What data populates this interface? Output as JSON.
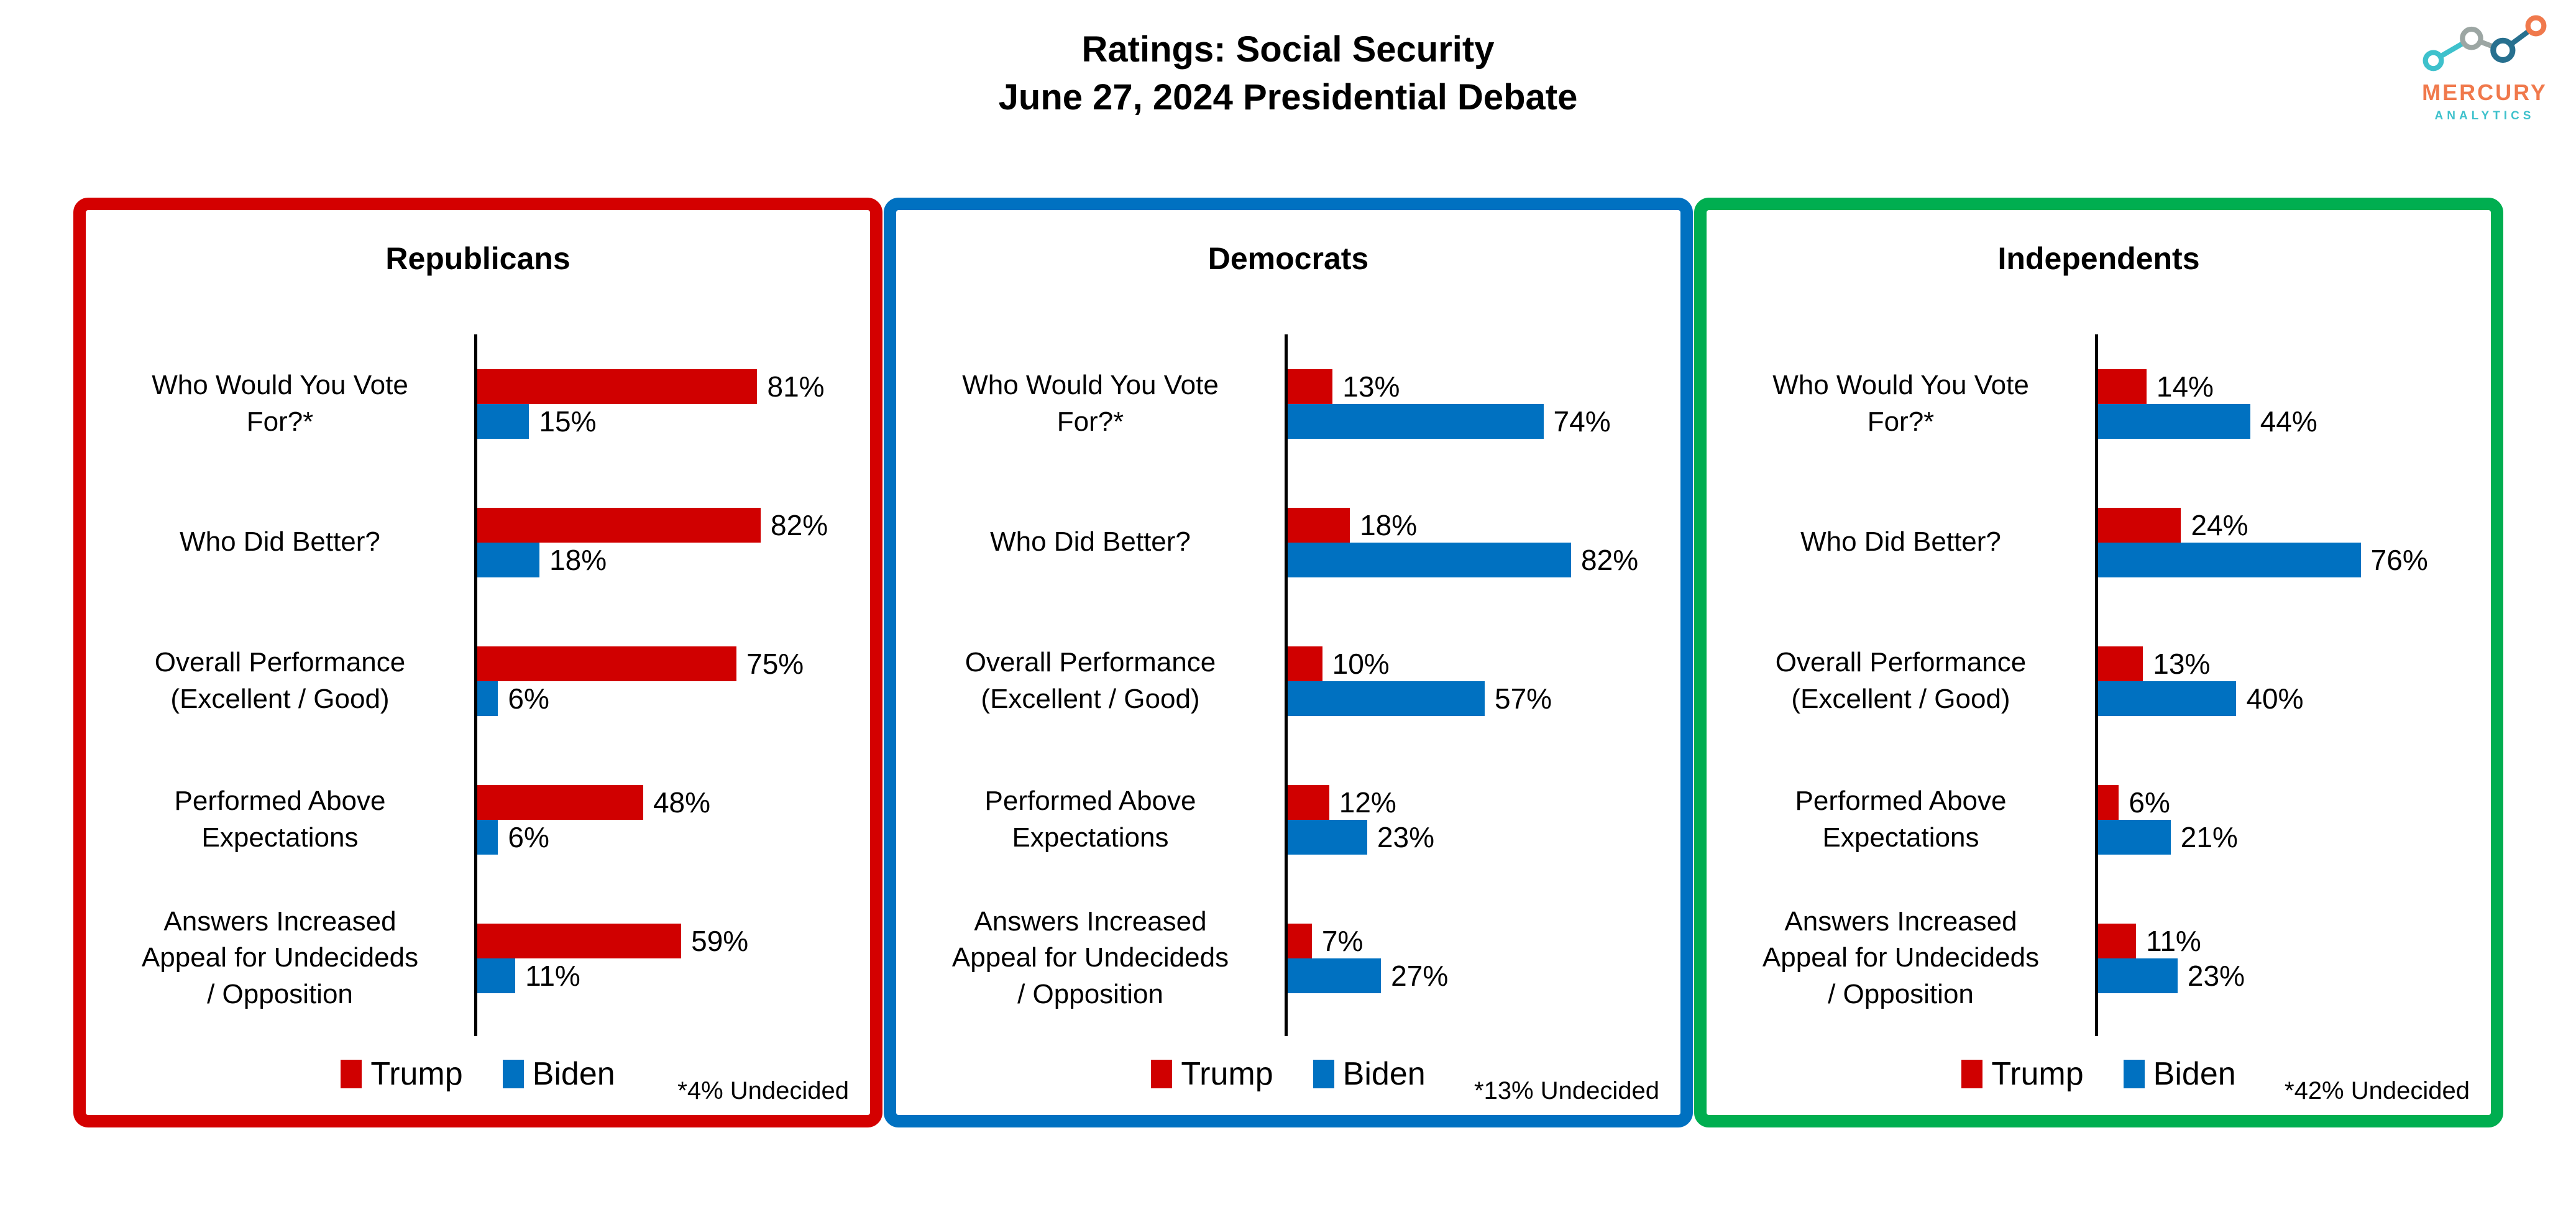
{
  "title": {
    "line1": "Ratings: Social Security",
    "line2": "June 27, 2024 Presidential Debate"
  },
  "logo": {
    "brand": "MERCURY",
    "sub": "ANALYTICS",
    "colors": {
      "teal": "#3EC1CC",
      "gray": "#9CA6A3",
      "steel": "#27708F",
      "orange": "#F0794C"
    }
  },
  "colors": {
    "trump": "#D00000",
    "biden": "#0071C1",
    "republicans_border": "#D40000",
    "democrats_border": "#0071C1",
    "independents_border": "#00AE50",
    "axis": "#000000",
    "text": "#000000"
  },
  "legend": {
    "trump_label": "Trump",
    "biden_label": "Biden"
  },
  "chart_data": {
    "type": "bar",
    "orientation": "horizontal",
    "unit": "percent",
    "value_suffix": "%",
    "xlim": [
      0,
      100
    ],
    "grid": false,
    "legend_position": "bottom",
    "title": "Ratings: Social Security",
    "subtitle": "June 27, 2024 Presidential Debate",
    "series_names": [
      "Trump",
      "Biden"
    ],
    "categories": [
      "Who Would You Vote For?*",
      "Who Did Better?",
      "Overall Performance (Excellent / Good)",
      "Performed Above Expectations",
      "Answers Increased Appeal for Undecideds / Opposition"
    ],
    "categories_display": [
      "Who Would You Vote\nFor?*",
      "Who Did Better?",
      "Overall Performance\n(Excellent / Good)",
      "Performed Above\nExpectations",
      "Answers Increased\nAppeal for Undecideds\n/ Opposition"
    ],
    "groups": [
      {
        "title": "Republicans",
        "border_color": "#D40000",
        "footnote": "*4% Undecided",
        "series": [
          {
            "name": "Trump",
            "color": "#D00000",
            "values": [
              81,
              82,
              75,
              48,
              59
            ]
          },
          {
            "name": "Biden",
            "color": "#0071C1",
            "values": [
              15,
              18,
              6,
              6,
              11
            ]
          }
        ]
      },
      {
        "title": "Democrats",
        "border_color": "#0071C1",
        "footnote": "*13% Undecided",
        "series": [
          {
            "name": "Trump",
            "color": "#D00000",
            "values": [
              13,
              18,
              10,
              12,
              7
            ]
          },
          {
            "name": "Biden",
            "color": "#0071C1",
            "values": [
              74,
              82,
              57,
              23,
              27
            ]
          }
        ]
      },
      {
        "title": "Independents",
        "border_color": "#00AE50",
        "footnote": "*42% Undecided",
        "series": [
          {
            "name": "Trump",
            "color": "#D00000",
            "values": [
              14,
              24,
              13,
              6,
              11
            ]
          },
          {
            "name": "Biden",
            "color": "#0071C1",
            "values": [
              44,
              76,
              40,
              21,
              23
            ]
          }
        ]
      }
    ]
  }
}
